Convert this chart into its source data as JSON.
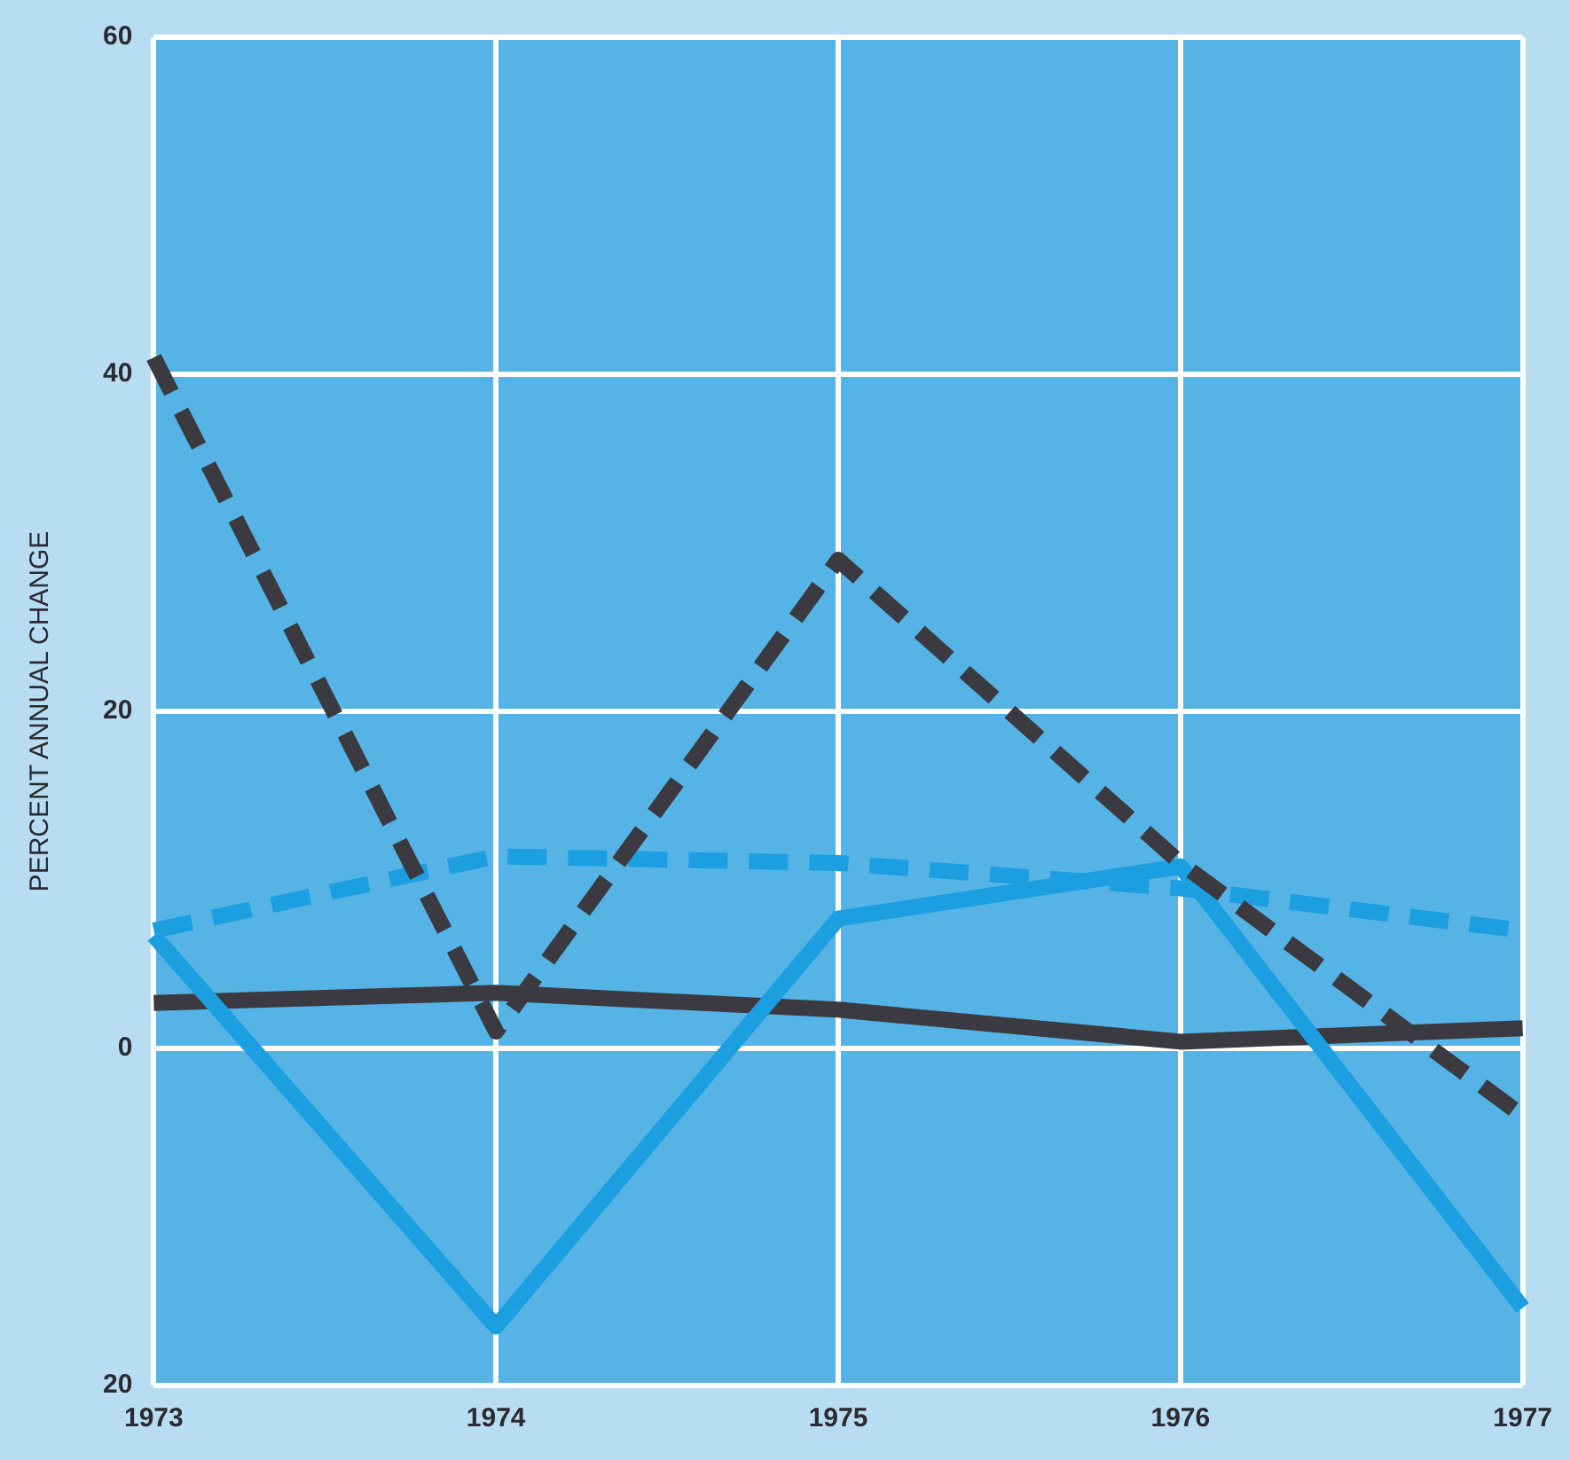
{
  "chart_data": {
    "type": "line",
    "ylabel": "PERCENT ANNUAL CHANGE",
    "categories": [
      "1973",
      "1974",
      "1975",
      "1976",
      "1977"
    ],
    "ylim": [
      -20,
      60
    ],
    "yticks": [
      {
        "value": -20,
        "label": "20"
      },
      0,
      20,
      40,
      60
    ],
    "grid": true,
    "legend": false,
    "marker": "none",
    "series": [
      {
        "color": "#3a3a40",
        "line_style": "dashed",
        "values": [
          41,
          1,
          29,
          11,
          -4
        ]
      },
      {
        "color": "#1c9fe0",
        "line_style": "dashed",
        "values": [
          7,
          11.4,
          11,
          9.5,
          7
        ]
      },
      {
        "color": "#1c9fe0",
        "line_style": "solid",
        "values": [
          6.7,
          -16.5,
          7.7,
          10.8,
          -15.4
        ]
      },
      {
        "color": "#3a3a40",
        "line_style": "solid",
        "values": [
          2.7,
          3.3,
          2.3,
          0.4,
          1.2
        ]
      }
    ]
  }
}
